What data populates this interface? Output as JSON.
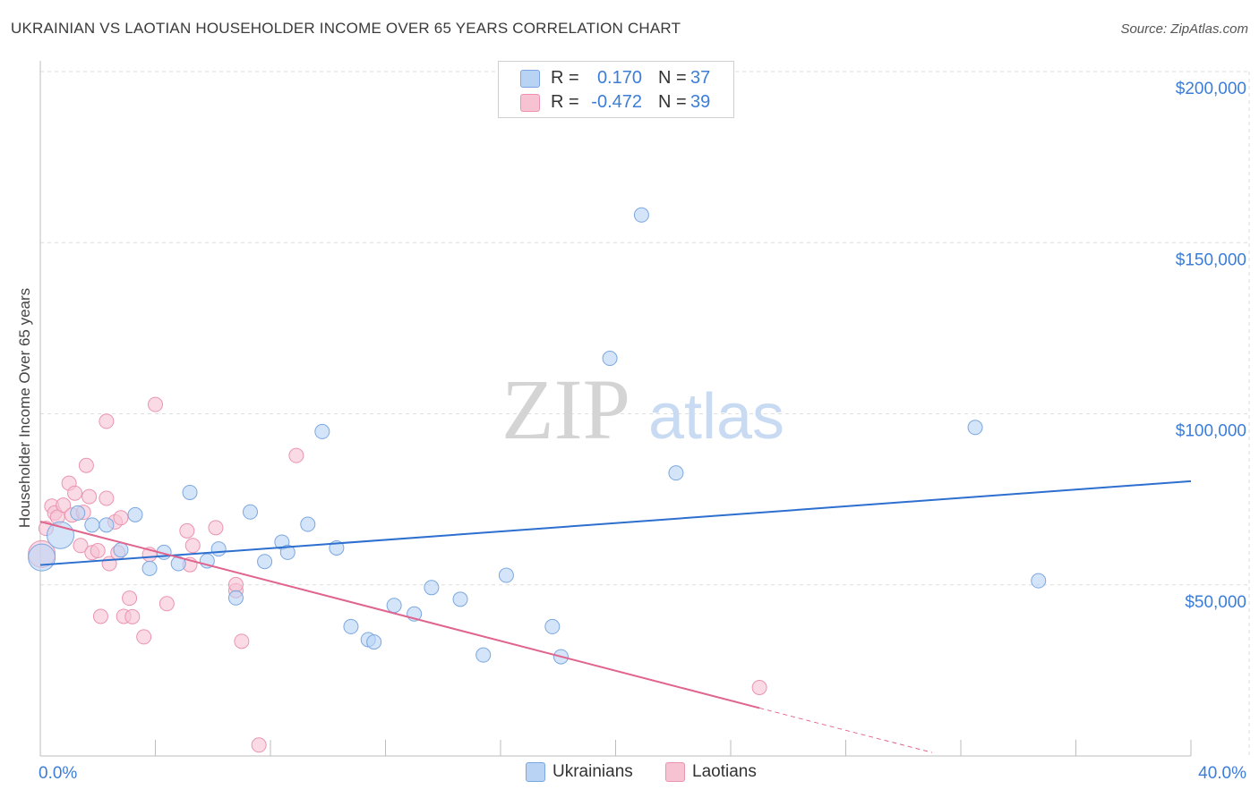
{
  "title": "UKRAINIAN VS LAOTIAN HOUSEHOLDER INCOME OVER 65 YEARS CORRELATION CHART",
  "source": "Source: ZipAtlas.com",
  "watermark": {
    "zip": "ZIP",
    "atlas": "atlas"
  },
  "legend_top": {
    "rows": [
      {
        "r_label": "R =",
        "r_value": "0.170",
        "n_label": "N =",
        "n_value": "37"
      },
      {
        "r_label": "R =",
        "r_value": "-0.472",
        "n_label": "N =",
        "n_value": "39"
      }
    ]
  },
  "colors": {
    "ukrainians_fill": "#b9d3f5",
    "ukrainians_stroke": "#7ba7e0",
    "ukrainians_line": "#2d6fcf",
    "laotians_fill": "#f7c3d3",
    "laotians_stroke": "#eb94b0",
    "laotians_line": "#e0648d",
    "axis_label": "#3b7dd8",
    "grid": "#dedede"
  },
  "chart_data": {
    "type": "scatter",
    "title": "UKRAINIAN VS LAOTIAN HOUSEHOLDER INCOME OVER 65 YEARS CORRELATION CHART",
    "xlabel": "",
    "ylabel": "Householder Income Over 65 years",
    "xlim": [
      0,
      40
    ],
    "ylim": [
      0,
      200000
    ],
    "x_tick_labels": [
      "0.0%",
      "40.0%"
    ],
    "y_tick_labels": [
      "$50,000",
      "$100,000",
      "$150,000",
      "$200,000"
    ],
    "y_ticks": [
      50000,
      100000,
      150000,
      200000
    ],
    "grid": true,
    "legend_position": "bottom-center",
    "series": [
      {
        "name": "Ukrainians",
        "r": 0.17,
        "n": 37,
        "trend": {
          "x": [
            0,
            40
          ],
          "y": [
            55800,
            80300
          ]
        },
        "points": [
          {
            "x": 0.05,
            "y": 58000,
            "big": true
          },
          {
            "x": 0.7,
            "y": 64500,
            "big": true
          },
          {
            "x": 1.3,
            "y": 71000
          },
          {
            "x": 1.8,
            "y": 67500
          },
          {
            "x": 2.3,
            "y": 67500
          },
          {
            "x": 2.8,
            "y": 60200
          },
          {
            "x": 3.3,
            "y": 70500
          },
          {
            "x": 3.8,
            "y": 54800
          },
          {
            "x": 4.3,
            "y": 59500
          },
          {
            "x": 4.8,
            "y": 56200
          },
          {
            "x": 5.2,
            "y": 77000
          },
          {
            "x": 5.8,
            "y": 57000
          },
          {
            "x": 6.2,
            "y": 60500
          },
          {
            "x": 6.8,
            "y": 46200
          },
          {
            "x": 7.3,
            "y": 71300
          },
          {
            "x": 7.8,
            "y": 56800
          },
          {
            "x": 8.4,
            "y": 62500
          },
          {
            "x": 8.6,
            "y": 59500
          },
          {
            "x": 9.3,
            "y": 67700
          },
          {
            "x": 9.8,
            "y": 94800
          },
          {
            "x": 10.3,
            "y": 60800
          },
          {
            "x": 10.8,
            "y": 37800
          },
          {
            "x": 11.4,
            "y": 34000
          },
          {
            "x": 11.6,
            "y": 33300
          },
          {
            "x": 12.3,
            "y": 44000
          },
          {
            "x": 13.0,
            "y": 41500
          },
          {
            "x": 13.6,
            "y": 49200
          },
          {
            "x": 14.6,
            "y": 45800
          },
          {
            "x": 15.4,
            "y": 29500
          },
          {
            "x": 16.2,
            "y": 52800
          },
          {
            "x": 17.8,
            "y": 37800
          },
          {
            "x": 18.1,
            "y": 29000
          },
          {
            "x": 19.8,
            "y": 116200
          },
          {
            "x": 20.9,
            "y": 158100
          },
          {
            "x": 22.1,
            "y": 82700
          },
          {
            "x": 32.5,
            "y": 96000
          },
          {
            "x": 34.7,
            "y": 51200
          }
        ]
      },
      {
        "name": "Laotians",
        "r": -0.472,
        "n": 39,
        "trend": {
          "x": [
            0,
            25
          ],
          "y": [
            68500,
            14000
          ]
        },
        "trend_dashed": {
          "x": [
            25,
            31
          ],
          "y": [
            14000,
            1000
          ]
        },
        "points": [
          {
            "x": 0.05,
            "y": 59000,
            "big": true
          },
          {
            "x": 0.2,
            "y": 66500
          },
          {
            "x": 0.4,
            "y": 73000
          },
          {
            "x": 0.5,
            "y": 71000
          },
          {
            "x": 0.6,
            "y": 69800
          },
          {
            "x": 0.8,
            "y": 73300
          },
          {
            "x": 1.0,
            "y": 79700
          },
          {
            "x": 1.1,
            "y": 70400
          },
          {
            "x": 1.2,
            "y": 76800
          },
          {
            "x": 1.4,
            "y": 61500
          },
          {
            "x": 1.5,
            "y": 71200
          },
          {
            "x": 1.6,
            "y": 84900
          },
          {
            "x": 1.7,
            "y": 75800
          },
          {
            "x": 1.8,
            "y": 59400
          },
          {
            "x": 2.0,
            "y": 60000
          },
          {
            "x": 2.1,
            "y": 40800
          },
          {
            "x": 2.3,
            "y": 75300
          },
          {
            "x": 2.3,
            "y": 97800
          },
          {
            "x": 2.4,
            "y": 56200
          },
          {
            "x": 2.6,
            "y": 68400
          },
          {
            "x": 2.7,
            "y": 59400
          },
          {
            "x": 2.8,
            "y": 69600
          },
          {
            "x": 2.9,
            "y": 40800
          },
          {
            "x": 3.1,
            "y": 46100
          },
          {
            "x": 3.2,
            "y": 40700
          },
          {
            "x": 3.6,
            "y": 34800
          },
          {
            "x": 3.8,
            "y": 58900
          },
          {
            "x": 4.0,
            "y": 102700
          },
          {
            "x": 4.4,
            "y": 44500
          },
          {
            "x": 5.1,
            "y": 65800
          },
          {
            "x": 5.2,
            "y": 55900
          },
          {
            "x": 5.3,
            "y": 61500
          },
          {
            "x": 6.1,
            "y": 66700
          },
          {
            "x": 6.8,
            "y": 48300
          },
          {
            "x": 6.8,
            "y": 50100
          },
          {
            "x": 7.0,
            "y": 33500
          },
          {
            "x": 7.6,
            "y": 3200
          },
          {
            "x": 8.9,
            "y": 87800
          },
          {
            "x": 25.0,
            "y": 20000
          }
        ]
      }
    ]
  }
}
